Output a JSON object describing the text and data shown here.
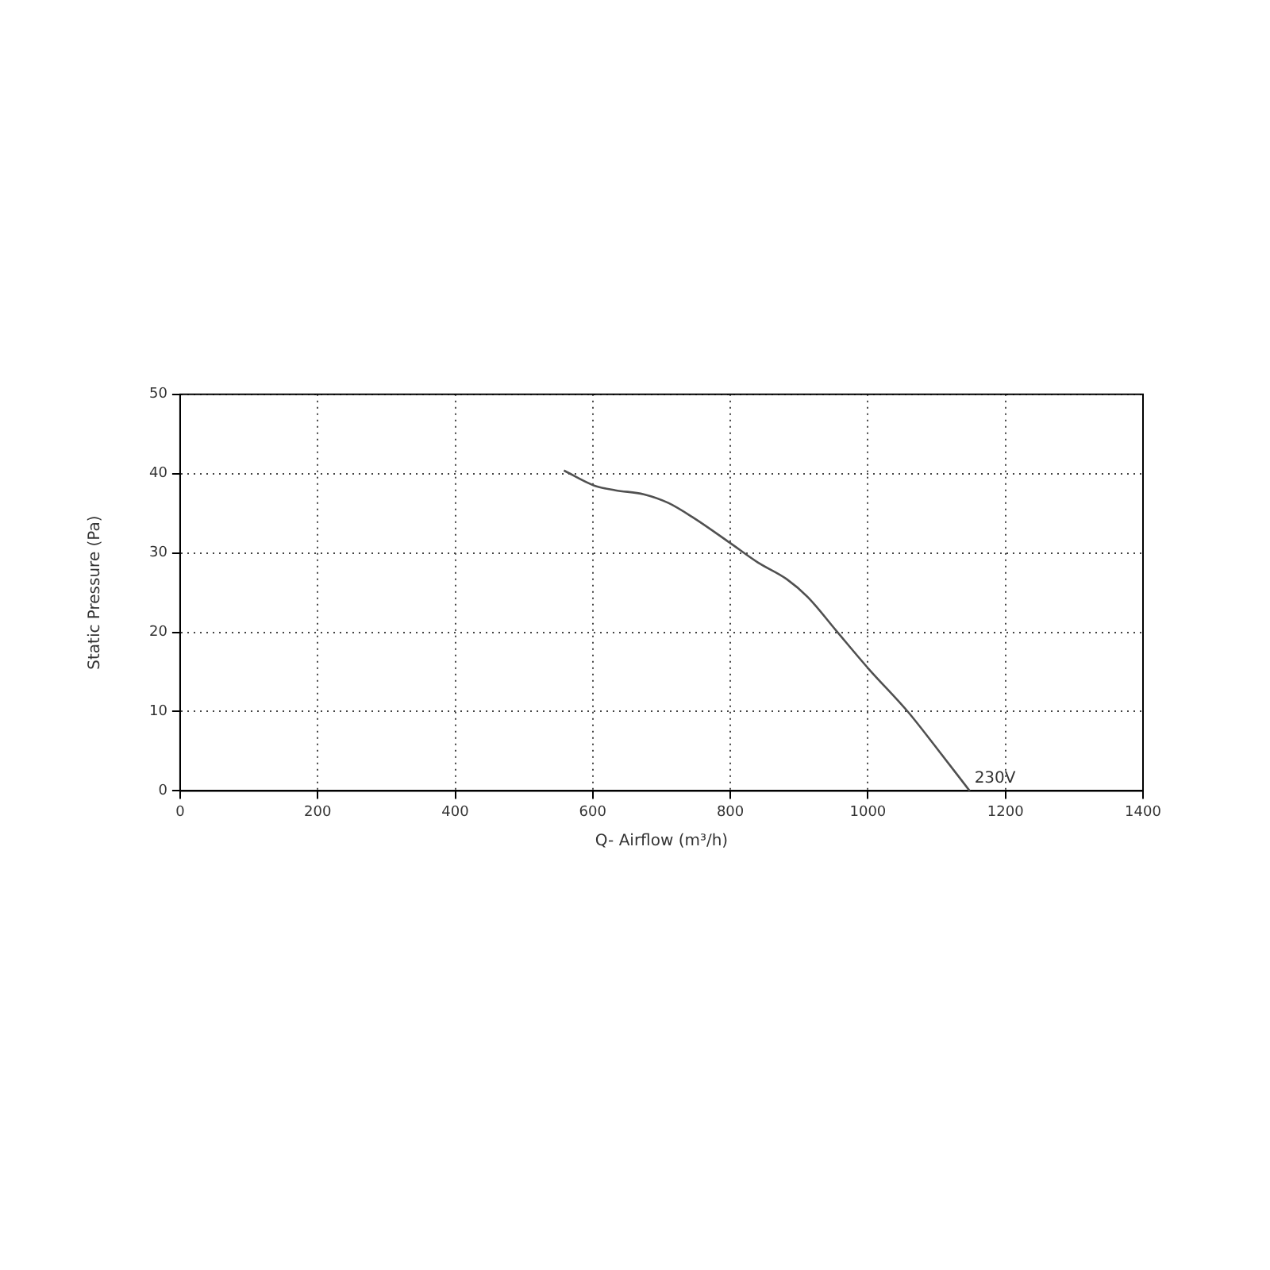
{
  "chart_data": {
    "type": "line",
    "xlabel": "Q- Airflow (m³/h)",
    "ylabel": "Static Pressure (Pa)",
    "x": [
      558,
      602,
      633,
      674,
      710,
      747,
      799,
      840,
      882,
      913,
      954,
      1001,
      1058,
      1100,
      1148
    ],
    "series": [
      {
        "color": "#505050",
        "values": [
          40.4,
          38.5,
          37.9,
          37.4,
          36.3,
          34.4,
          31.3,
          28.8,
          26.7,
          24.4,
          20.2,
          15.4,
          10.0,
          5.4,
          0
        ]
      }
    ],
    "xlim": [
      0,
      1400
    ],
    "xticks": [
      0,
      200,
      400,
      600,
      800,
      1000,
      1200,
      1400
    ],
    "ylim": [
      0,
      50
    ],
    "yticks": [
      0,
      10,
      20,
      30,
      40,
      50
    ],
    "grid": true,
    "legend": false,
    "marker": "none",
    "line_style": "solid",
    "annotations": [
      {
        "text": "230V",
        "x": 1148,
        "y": 0
      }
    ]
  }
}
